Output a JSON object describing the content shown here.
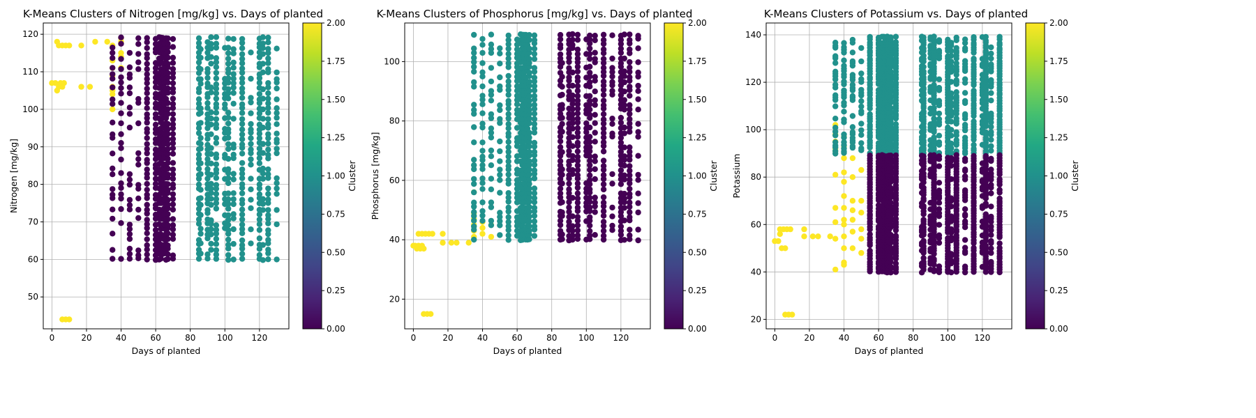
{
  "chart_data": [
    {
      "type": "scatter",
      "title": "K-Means Clusters of Nitrogen [mg/kg] vs. Days of planted",
      "xlabel": "Days of planted",
      "ylabel": "Nitrogen [mg/kg]",
      "xlim": [
        -5,
        137
      ],
      "ylim": [
        41.5,
        123
      ],
      "xticks": [
        0,
        20,
        40,
        60,
        80,
        100,
        120
      ],
      "yticks": [
        50,
        60,
        70,
        80,
        90,
        100,
        110,
        120
      ],
      "grid": true,
      "colorbar": {
        "label": "Cluster",
        "range": [
          0,
          2
        ],
        "ticks": [
          "0.00",
          "0.25",
          "0.50",
          "0.75",
          "1.00",
          "1.25",
          "1.50",
          "1.75",
          "2.00"
        ]
      },
      "cluster_colors": {
        "0": "#440154",
        "1": "#21918c",
        "2": "#fde725"
      },
      "series": [
        {
          "name": "cluster 2",
          "cluster": 2,
          "points": [
            [
              0,
              107
            ],
            [
              2,
              107
            ],
            [
              3,
              105
            ],
            [
              4,
              106
            ],
            [
              5,
              107
            ],
            [
              6,
              106
            ],
            [
              7,
              107
            ],
            [
              3,
              118
            ],
            [
              4,
              117
            ],
            [
              6,
              117
            ],
            [
              8,
              117
            ],
            [
              10,
              117
            ],
            [
              17,
              117
            ],
            [
              25,
              118
            ],
            [
              32,
              118
            ],
            [
              35,
              117
            ],
            [
              40,
              118
            ],
            [
              40,
              119
            ],
            [
              40,
              115
            ],
            [
              40,
              114
            ],
            [
              40,
              111
            ],
            [
              35,
              113
            ],
            [
              35,
              111
            ],
            [
              35,
              109
            ],
            [
              35,
              106
            ],
            [
              35,
              104
            ],
            [
              35,
              105
            ],
            [
              35,
              100
            ],
            [
              17,
              106
            ],
            [
              22,
              106
            ],
            [
              6,
              44
            ],
            [
              8,
              44
            ],
            [
              10,
              44
            ]
          ]
        },
        {
          "name": "cluster 0",
          "cluster": 0,
          "xs": [
            35,
            40,
            45,
            50,
            55,
            60,
            62,
            63,
            64,
            65,
            66,
            67,
            70
          ],
          "y_range": [
            60,
            119
          ]
        },
        {
          "name": "cluster 1",
          "cluster": 1,
          "xs": [
            85,
            86,
            90,
            92,
            95,
            100,
            102,
            105,
            110,
            115,
            120,
            122,
            125,
            130
          ],
          "y_range": [
            60,
            119
          ]
        }
      ]
    },
    {
      "type": "scatter",
      "title": "K-Means Clusters of Phosphorus [mg/kg] vs. Days of planted",
      "xlabel": "Days of planted",
      "ylabel": "Phosphorus [mg/kg]",
      "xlim": [
        -5,
        137
      ],
      "ylim": [
        10,
        113
      ],
      "xticks": [
        0,
        20,
        40,
        60,
        80,
        100,
        120
      ],
      "yticks": [
        20,
        40,
        60,
        80,
        100
      ],
      "grid": true,
      "colorbar": {
        "label": "Cluster",
        "range": [
          0,
          2
        ],
        "ticks": [
          "0.00",
          "0.25",
          "0.50",
          "0.75",
          "1.00",
          "1.25",
          "1.50",
          "1.75",
          "2.00"
        ]
      },
      "cluster_colors": {
        "0": "#440154",
        "1": "#21918c",
        "2": "#fde725"
      },
      "series": [
        {
          "name": "cluster 2",
          "cluster": 2,
          "points": [
            [
              0,
              38
            ],
            [
              1,
              38
            ],
            [
              2,
              37
            ],
            [
              3,
              38
            ],
            [
              4,
              37
            ],
            [
              5,
              38
            ],
            [
              6,
              37
            ],
            [
              3,
              42
            ],
            [
              5,
              42
            ],
            [
              7,
              42
            ],
            [
              9,
              42
            ],
            [
              11,
              42
            ],
            [
              17,
              42
            ],
            [
              17,
              39
            ],
            [
              22,
              39
            ],
            [
              25,
              39
            ],
            [
              32,
              39
            ],
            [
              35,
              41
            ],
            [
              35,
              43
            ],
            [
              35,
              45
            ],
            [
              35,
              47
            ],
            [
              35,
              49
            ],
            [
              35,
              56
            ],
            [
              40,
              44
            ],
            [
              40,
              42
            ],
            [
              40,
              46
            ],
            [
              45,
              45
            ],
            [
              45,
              41
            ],
            [
              6,
              15
            ],
            [
              8,
              15
            ],
            [
              10,
              15
            ]
          ]
        },
        {
          "name": "cluster 1",
          "cluster": 1,
          "xs": [
            35,
            40,
            45,
            50,
            55,
            60,
            62,
            63,
            64,
            65,
            66,
            67,
            70
          ],
          "y_range": [
            40,
            109
          ]
        },
        {
          "name": "cluster 0",
          "cluster": 0,
          "xs": [
            85,
            86,
            90,
            92,
            95,
            100,
            102,
            105,
            110,
            115,
            120,
            122,
            125,
            130
          ],
          "y_range": [
            40,
            109
          ]
        }
      ]
    },
    {
      "type": "scatter",
      "title": "K-Means Clusters of Potassium vs. Days of planted",
      "xlabel": "Days of planted",
      "ylabel": "Potassium",
      "xlim": [
        -5,
        137
      ],
      "ylim": [
        16,
        145
      ],
      "xticks": [
        0,
        20,
        40,
        60,
        80,
        100,
        120
      ],
      "yticks": [
        20,
        40,
        60,
        80,
        100,
        120,
        140
      ],
      "grid": true,
      "colorbar": {
        "label": "Cluster",
        "range": [
          0,
          2
        ],
        "ticks": [
          "0.00",
          "0.25",
          "0.50",
          "0.75",
          "1.00",
          "1.25",
          "1.50",
          "1.75",
          "2.00"
        ]
      },
      "cluster_colors": {
        "0": "#440154",
        "1": "#21918c",
        "2": "#fde725"
      },
      "series": [
        {
          "name": "cluster 2",
          "cluster": 2,
          "points": [
            [
              0,
              53
            ],
            [
              2,
              53
            ],
            [
              3,
              56
            ],
            [
              3,
              58
            ],
            [
              5,
              58
            ],
            [
              7,
              58
            ],
            [
              9,
              58
            ],
            [
              4,
              50
            ],
            [
              6,
              50
            ],
            [
              17,
              58
            ],
            [
              17,
              55
            ],
            [
              22,
              55
            ],
            [
              25,
              55
            ],
            [
              32,
              55
            ],
            [
              35,
              54
            ],
            [
              35,
              61
            ],
            [
              35,
              67
            ],
            [
              35,
              81
            ],
            [
              35,
              91
            ],
            [
              35,
              92
            ],
            [
              35,
              95
            ],
            [
              35,
              98
            ],
            [
              35,
              102
            ],
            [
              35,
              41
            ],
            [
              40,
              43
            ],
            [
              40,
              44
            ],
            [
              40,
              50
            ],
            [
              40,
              55
            ],
            [
              40,
              60
            ],
            [
              40,
              62
            ],
            [
              40,
              67
            ],
            [
              40,
              72
            ],
            [
              40,
              78
            ],
            [
              40,
              82
            ],
            [
              40,
              88
            ],
            [
              40,
              93
            ],
            [
              40,
              97
            ],
            [
              45,
              88
            ],
            [
              45,
              80
            ],
            [
              45,
              70
            ],
            [
              45,
              66
            ],
            [
              45,
              62
            ],
            [
              45,
              57
            ],
            [
              45,
              50
            ],
            [
              50,
              83
            ],
            [
              50,
              70
            ],
            [
              50,
              65
            ],
            [
              50,
              58
            ],
            [
              50,
              54
            ],
            [
              50,
              48
            ],
            [
              6,
              22
            ],
            [
              8,
              22
            ],
            [
              10,
              22
            ]
          ]
        },
        {
          "name": "cluster 1",
          "cluster": 1,
          "xs": [
            35,
            40,
            45,
            50,
            55,
            60,
            62,
            63,
            64,
            65,
            66,
            67,
            70,
            85,
            86,
            90,
            92,
            95,
            100,
            102,
            105,
            110,
            115,
            120,
            122,
            125,
            130
          ],
          "y_range": [
            90,
            139
          ]
        },
        {
          "name": "cluster 0",
          "cluster": 0,
          "xs": [
            55,
            60,
            62,
            63,
            64,
            65,
            66,
            67,
            70,
            85,
            86,
            90,
            92,
            95,
            100,
            102,
            105,
            110,
            115,
            120,
            122,
            125,
            130
          ],
          "y_range": [
            40,
            89
          ]
        }
      ]
    }
  ]
}
